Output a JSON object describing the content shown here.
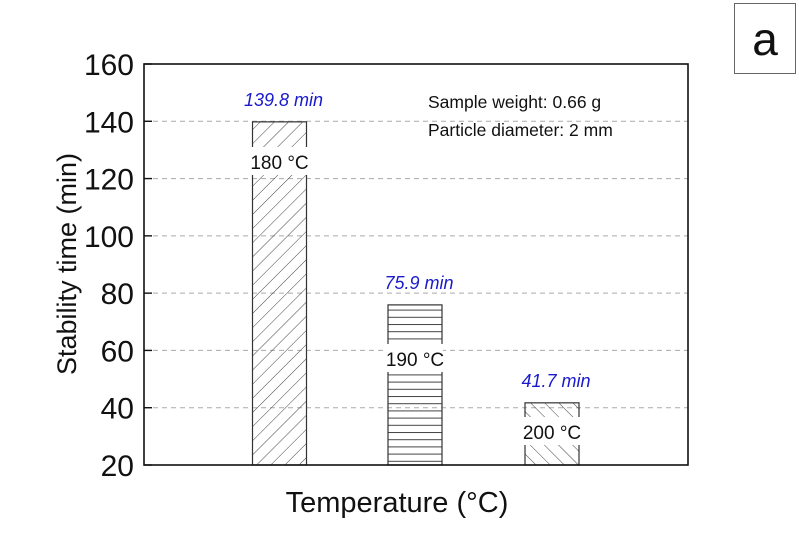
{
  "panel_label": "a",
  "chart_data": {
    "type": "bar",
    "title": "",
    "xlabel": "Temperature (°C)",
    "ylabel": "Stability time (min)",
    "ylim": [
      20,
      160
    ],
    "yticks": [
      20,
      40,
      60,
      80,
      100,
      120,
      140,
      160
    ],
    "grid": "horizontal dashed",
    "categories": [
      "180 °C",
      "190 °C",
      "200 °C"
    ],
    "values": [
      139.8,
      75.9,
      41.7
    ],
    "value_labels": [
      "139.8 min",
      "75.9 min",
      "41.7 min"
    ],
    "value_label_color": "#1a1acd",
    "patterns": [
      "diagonal-forward",
      "horizontal",
      "diagonal-backward"
    ],
    "annotations": [
      "Sample weight: 0.66 g",
      "Particle diameter: 2 mm"
    ]
  }
}
